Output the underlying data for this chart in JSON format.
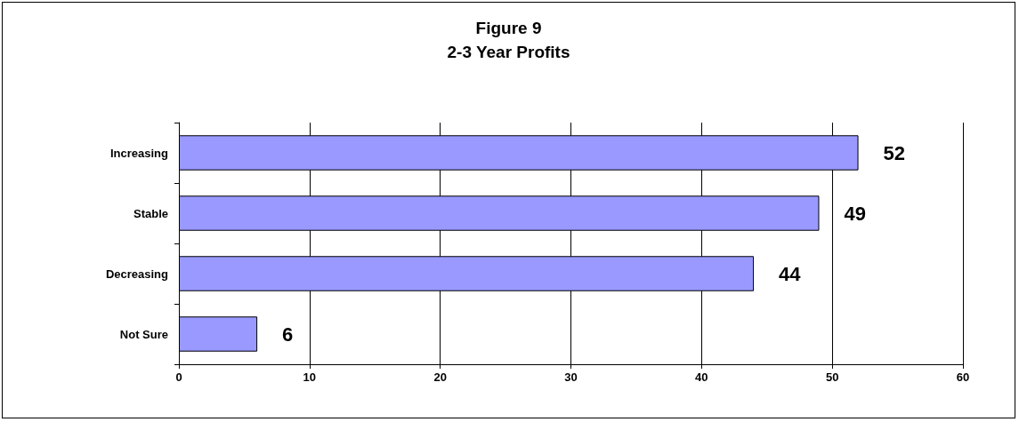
{
  "chart_data": {
    "type": "bar",
    "orientation": "horizontal",
    "title": "Figure 9",
    "subtitle": "2-3 Year Profits",
    "categories": [
      "Increasing",
      "Stable",
      "Decreasing",
      "Not Sure"
    ],
    "values": [
      52,
      49,
      44,
      6
    ],
    "color": "#9999ff",
    "xlim": [
      0,
      60
    ],
    "xticks": [
      0,
      10,
      20,
      30,
      40,
      50,
      60
    ],
    "grid": "x",
    "data_labels": true
  }
}
